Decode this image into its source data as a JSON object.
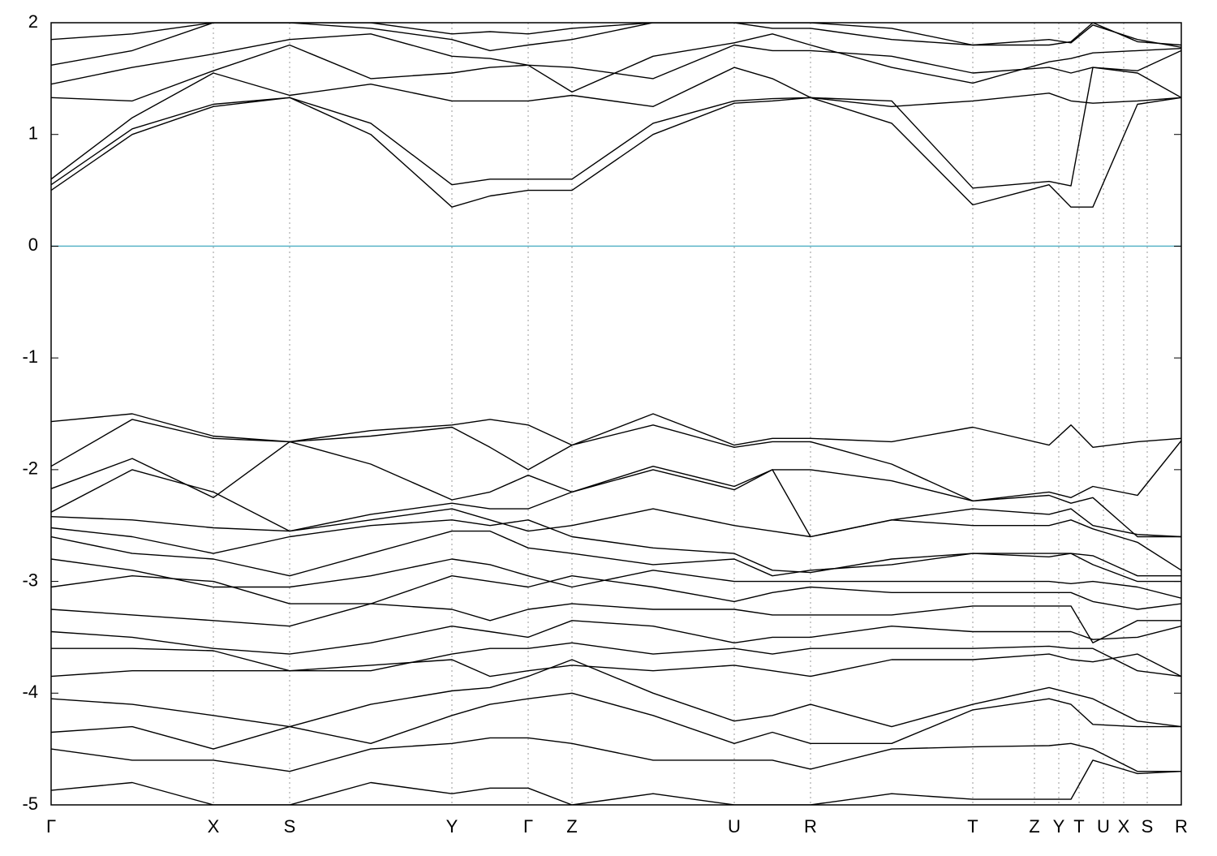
{
  "chart_data": {
    "type": "line",
    "x": [
      0,
      1.0,
      2.0,
      2.94,
      3.94,
      4.94,
      5.41,
      5.88,
      6.42,
      7.42,
      8.42,
      8.89,
      9.36,
      10.36,
      11.36,
      12.3,
      12.57,
      12.84,
      13.39,
      13.93
    ],
    "xlim": [
      0,
      13.93
    ],
    "xticks": [
      {
        "value": 0,
        "label": "Γ"
      },
      {
        "value": 2.0,
        "label": "X"
      },
      {
        "value": 2.94,
        "label": "S"
      },
      {
        "value": 4.94,
        "label": "Y"
      },
      {
        "value": 5.88,
        "label": "Γ"
      },
      {
        "value": 6.42,
        "label": "Z"
      },
      {
        "value": 8.42,
        "label": "U"
      },
      {
        "value": 9.36,
        "label": "R"
      },
      {
        "value": 11.36,
        "label": "T"
      },
      {
        "value": 12.12,
        "label": "Z"
      },
      {
        "value": 12.42,
        "label": "Y"
      },
      {
        "value": 12.67,
        "label": "T"
      },
      {
        "value": 12.97,
        "label": "U"
      },
      {
        "value": 13.22,
        "label": "X"
      },
      {
        "value": 13.51,
        "label": "S"
      },
      {
        "value": 13.93,
        "label": "R"
      }
    ],
    "ylim": [
      -5,
      2
    ],
    "yticks": [
      2,
      1,
      0,
      -1,
      -2,
      -3,
      -4,
      -5
    ],
    "grid": true,
    "color": "#000000",
    "fermi_level": 0,
    "fermi_color": "#5ab4c8",
    "series": [
      {
        "values": [
          0.5,
          1.0,
          1.25,
          1.33,
          1.0,
          0.35,
          0.45,
          0.5,
          0.5,
          1.0,
          1.28,
          1.3,
          1.33,
          1.1,
          0.37,
          0.55,
          0.35,
          0.35,
          1.27,
          1.33
        ]
      },
      {
        "values": [
          0.55,
          1.05,
          1.27,
          1.33,
          1.1,
          0.55,
          0.6,
          0.6,
          0.6,
          1.1,
          1.3,
          1.32,
          1.33,
          1.3,
          0.52,
          0.58,
          0.54,
          1.6,
          1.55,
          1.33
        ]
      },
      {
        "values": [
          0.6,
          1.15,
          1.55,
          1.35,
          1.45,
          1.3,
          1.3,
          1.3,
          1.35,
          1.25,
          1.6,
          1.5,
          1.33,
          1.25,
          1.3,
          1.37,
          1.3,
          1.28,
          1.3,
          1.33
        ]
      },
      {
        "values": [
          1.33,
          1.3,
          1.57,
          1.8,
          1.5,
          1.55,
          1.6,
          1.62,
          1.6,
          1.5,
          1.8,
          1.75,
          1.75,
          1.7,
          1.55,
          1.6,
          1.55,
          1.6,
          1.57,
          1.75
        ]
      },
      {
        "values": [
          1.45,
          1.6,
          1.72,
          1.85,
          1.9,
          1.7,
          1.68,
          1.62,
          1.38,
          1.7,
          1.82,
          1.9,
          1.8,
          1.6,
          1.46,
          1.65,
          1.68,
          1.73,
          1.75,
          1.77
        ]
      },
      {
        "values": [
          1.62,
          1.75,
          2.0,
          2.0,
          1.95,
          1.85,
          1.75,
          1.8,
          1.85,
          2.0,
          2.0,
          1.95,
          1.95,
          1.85,
          1.8,
          1.8,
          1.83,
          2.0,
          1.83,
          1.8
        ]
      },
      {
        "values": [
          1.85,
          1.9,
          2.0,
          2.0,
          2.0,
          1.9,
          1.92,
          1.9,
          1.95,
          2.0,
          2.0,
          2.0,
          2.0,
          1.95,
          1.8,
          1.85,
          1.82,
          1.98,
          1.85,
          1.78
        ]
      },
      {
        "values": [
          -1.57,
          -1.5,
          -1.7,
          -1.75,
          -1.65,
          -1.6,
          -1.55,
          -1.6,
          -1.78,
          -1.5,
          -1.78,
          -1.72,
          -1.72,
          -1.75,
          -1.62,
          -1.78,
          -1.6,
          -1.8,
          -1.75,
          -1.72
        ]
      },
      {
        "values": [
          -1.97,
          -1.55,
          -1.72,
          -1.75,
          -1.7,
          -1.62,
          -1.8,
          -2.0,
          -1.78,
          -1.6,
          -1.8,
          -1.75,
          -1.75,
          -1.95,
          -2.28,
          -2.2,
          -2.25,
          -2.15,
          -2.23,
          -1.74
        ]
      },
      {
        "values": [
          -2.17,
          -1.9,
          -2.25,
          -1.75,
          -1.95,
          -2.27,
          -2.2,
          -2.05,
          -2.2,
          -1.97,
          -2.15,
          -2.0,
          -2.0,
          -2.1,
          -2.28,
          -2.23,
          -2.3,
          -2.25,
          -2.6,
          -2.6
        ]
      },
      {
        "values": [
          -2.38,
          -2.0,
          -2.2,
          -2.55,
          -2.4,
          -2.3,
          -2.35,
          -2.35,
          -2.2,
          -2.0,
          -2.18,
          -2.0,
          -2.6,
          -2.45,
          -2.35,
          -2.4,
          -2.35,
          -2.5,
          -2.58,
          -2.6
        ]
      },
      {
        "values": [
          -2.42,
          -2.45,
          -2.52,
          -2.55,
          -2.45,
          -2.35,
          -2.45,
          -2.55,
          -2.5,
          -2.35,
          -2.5,
          -2.55,
          -2.6,
          -2.45,
          -2.5,
          -2.5,
          -2.45,
          -2.53,
          -2.65,
          -2.9
        ]
      },
      {
        "values": [
          -2.52,
          -2.6,
          -2.75,
          -2.6,
          -2.5,
          -2.45,
          -2.5,
          -2.45,
          -2.6,
          -2.7,
          -2.75,
          -2.9,
          -2.92,
          -2.8,
          -2.75,
          -2.75,
          -2.75,
          -2.77,
          -2.95,
          -2.95
        ]
      },
      {
        "values": [
          -2.6,
          -2.75,
          -2.8,
          -2.95,
          -2.75,
          -2.55,
          -2.55,
          -2.7,
          -2.75,
          -2.85,
          -2.8,
          -2.95,
          -2.9,
          -2.85,
          -2.75,
          -2.78,
          -2.75,
          -2.85,
          -3.0,
          -3.0
        ]
      },
      {
        "values": [
          -2.8,
          -2.9,
          -3.05,
          -3.05,
          -2.95,
          -2.8,
          -2.85,
          -2.95,
          -3.05,
          -2.9,
          -3.0,
          -3.0,
          -3.0,
          -3.0,
          -3.0,
          -3.0,
          -3.02,
          -3.0,
          -3.05,
          -3.15
        ]
      },
      {
        "values": [
          -3.05,
          -2.95,
          -3.0,
          -3.2,
          -3.2,
          -2.95,
          -3.0,
          -3.05,
          -2.95,
          -3.05,
          -3.18,
          -3.1,
          -3.05,
          -3.1,
          -3.1,
          -3.1,
          -3.1,
          -3.18,
          -3.25,
          -3.2
        ]
      },
      {
        "values": [
          -3.25,
          -3.3,
          -3.35,
          -3.4,
          -3.2,
          -3.25,
          -3.35,
          -3.25,
          -3.2,
          -3.25,
          -3.25,
          -3.3,
          -3.3,
          -3.3,
          -3.22,
          -3.22,
          -3.22,
          -3.55,
          -3.35,
          -3.35
        ]
      },
      {
        "values": [
          -3.45,
          -3.5,
          -3.6,
          -3.65,
          -3.55,
          -3.4,
          -3.45,
          -3.5,
          -3.35,
          -3.4,
          -3.55,
          -3.5,
          -3.5,
          -3.4,
          -3.45,
          -3.45,
          -3.45,
          -3.52,
          -3.5,
          -3.4
        ]
      },
      {
        "values": [
          -3.6,
          -3.6,
          -3.62,
          -3.8,
          -3.8,
          -3.65,
          -3.6,
          -3.6,
          -3.55,
          -3.65,
          -3.6,
          -3.65,
          -3.6,
          -3.6,
          -3.6,
          -3.58,
          -3.6,
          -3.6,
          -3.8,
          -3.85
        ]
      },
      {
        "values": [
          -3.85,
          -3.8,
          -3.8,
          -3.8,
          -3.75,
          -3.7,
          -3.85,
          -3.8,
          -3.75,
          -3.8,
          -3.75,
          -3.8,
          -3.85,
          -3.7,
          -3.7,
          -3.65,
          -3.7,
          -3.72,
          -3.65,
          -3.85
        ]
      },
      {
        "values": [
          -4.05,
          -4.1,
          -4.2,
          -4.3,
          -4.1,
          -3.98,
          -3.95,
          -3.85,
          -3.7,
          -4.0,
          -4.25,
          -4.2,
          -4.1,
          -4.3,
          -4.1,
          -3.95,
          -4.0,
          -4.05,
          -4.25,
          -4.3
        ]
      },
      {
        "values": [
          -4.35,
          -4.3,
          -4.5,
          -4.3,
          -4.45,
          -4.2,
          -4.1,
          -4.05,
          -4.0,
          -4.2,
          -4.45,
          -4.35,
          -4.45,
          -4.45,
          -4.15,
          -4.05,
          -4.1,
          -4.28,
          -4.3,
          -4.3
        ]
      },
      {
        "values": [
          -4.5,
          -4.6,
          -4.6,
          -4.7,
          -4.5,
          -4.45,
          -4.4,
          -4.4,
          -4.45,
          -4.6,
          -4.6,
          -4.6,
          -4.68,
          -4.5,
          -4.48,
          -4.47,
          -4.45,
          -4.5,
          -4.7,
          -4.7
        ]
      },
      {
        "values": [
          -4.87,
          -4.8,
          -5.0,
          -5.0,
          -4.8,
          -4.9,
          -4.85,
          -4.85,
          -5.0,
          -4.9,
          -5.0,
          -5.0,
          -5.0,
          -4.9,
          -4.95,
          -4.95,
          -4.95,
          -4.6,
          -4.72,
          -4.7
        ]
      }
    ]
  }
}
